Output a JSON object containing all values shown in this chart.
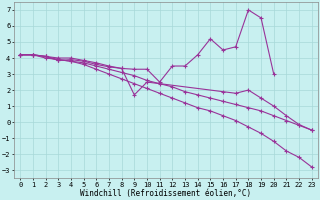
{
  "background_color": "#c8f0f0",
  "grid_color": "#a8d8d8",
  "line_color": "#993399",
  "ylim": [
    -3.5,
    7.5
  ],
  "xlim": [
    -0.5,
    23.5
  ],
  "yticks": [
    -3,
    -2,
    -1,
    0,
    1,
    2,
    3,
    4,
    5,
    6,
    7
  ],
  "xticks": [
    0,
    1,
    2,
    3,
    4,
    5,
    6,
    7,
    8,
    9,
    10,
    11,
    12,
    13,
    14,
    15,
    16,
    17,
    18,
    19,
    20,
    21,
    22,
    23
  ],
  "xlabel": "Windchill (Refroidissement éolien,°C)",
  "axis_fontsize": 5.5,
  "tick_fontsize": 5.0,
  "line1_x": [
    0,
    1,
    2,
    3,
    4,
    5,
    6,
    7,
    8,
    9,
    10,
    11,
    12,
    13,
    14,
    15,
    16,
    17,
    18,
    19,
    20
  ],
  "line1_y": [
    4.2,
    4.2,
    4.1,
    3.85,
    3.9,
    3.8,
    3.6,
    3.45,
    3.35,
    3.3,
    3.3,
    2.5,
    3.5,
    3.5,
    4.2,
    5.2,
    4.5,
    4.7,
    7.0,
    6.5,
    3.0
  ],
  "line2_x": [
    0,
    1,
    2,
    3,
    4,
    5,
    6,
    7,
    8,
    9,
    10,
    11,
    12,
    13,
    14,
    15,
    16,
    17,
    18,
    19,
    20,
    21,
    22,
    23
  ],
  "line2_y": [
    4.2,
    4.2,
    4.0,
    3.9,
    3.8,
    3.7,
    3.5,
    3.3,
    3.1,
    2.9,
    2.6,
    2.4,
    2.2,
    1.9,
    1.7,
    1.5,
    1.3,
    1.1,
    0.9,
    0.7,
    0.4,
    0.1,
    -0.2,
    -0.5
  ],
  "line3_x": [
    0,
    1,
    2,
    3,
    4,
    5,
    6,
    7,
    8,
    9,
    10,
    16,
    17,
    18,
    19,
    20,
    21,
    22,
    23
  ],
  "line3_y": [
    4.2,
    4.2,
    4.1,
    4.0,
    4.0,
    3.85,
    3.7,
    3.5,
    3.35,
    1.7,
    2.5,
    1.9,
    1.8,
    2.0,
    1.5,
    1.0,
    0.4,
    -0.15,
    -0.5
  ],
  "line4_x": [
    0,
    1,
    2,
    3,
    4,
    5,
    6,
    7,
    8,
    9,
    10,
    11,
    12,
    13,
    14,
    15,
    16,
    17,
    18,
    19,
    20,
    21,
    22,
    23
  ],
  "line4_y": [
    4.2,
    4.2,
    4.1,
    3.9,
    3.8,
    3.6,
    3.3,
    3.0,
    2.7,
    2.4,
    2.1,
    1.8,
    1.5,
    1.2,
    0.9,
    0.7,
    0.4,
    0.1,
    -0.3,
    -0.7,
    -1.2,
    -1.8,
    -2.2,
    -2.8
  ]
}
